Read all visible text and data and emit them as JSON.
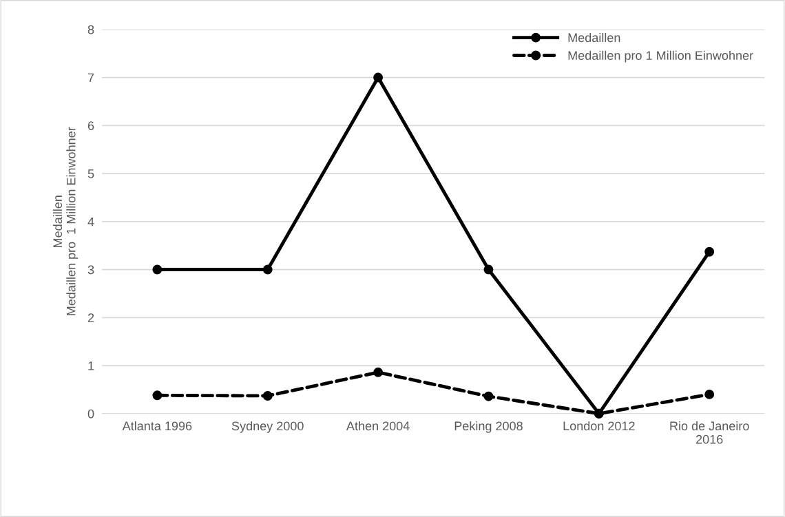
{
  "chart_data": {
    "type": "line",
    "ylabel": "Medaillen\nMedaillen pro  1 Million Einwohner",
    "categories": [
      "Atlanta 1996",
      "Sydney 2000",
      "Athen 2004",
      "Peking 2008",
      "London 2012",
      "Rio de Janeiro\n2016"
    ],
    "series": [
      {
        "name": "Medaillen",
        "color": "#000000",
        "line_style": "solid",
        "values": [
          3,
          3,
          7,
          3,
          0,
          3.37
        ]
      },
      {
        "name": "Medaillen pro 1 Million Einwohner",
        "color": "#000000",
        "line_style": "dashed",
        "values": [
          0.38,
          0.37,
          0.86,
          0.36,
          0,
          0.4
        ]
      }
    ],
    "ylim": [
      0,
      8
    ],
    "yticks": [
      0,
      1,
      2,
      3,
      4,
      5,
      6,
      7,
      8
    ],
    "grid": "y",
    "legend": "top right",
    "marker": "circle"
  }
}
